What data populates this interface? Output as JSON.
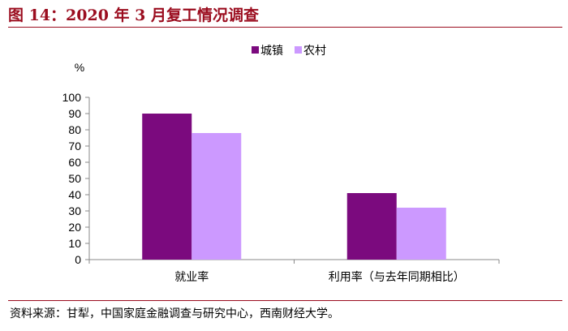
{
  "figure": {
    "title": "图 14：2020 年 3 月复工情况调查",
    "source": "资料来源：甘犁，中国家庭金融调查与研究中心，西南财经大学。"
  },
  "colors": {
    "title": "#9b0d1f",
    "series_城镇": "#7b0a7e",
    "series_农村": "#cc99ff"
  },
  "chart_data": {
    "type": "bar",
    "title": "",
    "xlabel": "",
    "ylabel": "%",
    "ylim": [
      0,
      100
    ],
    "yticks": [
      0,
      10,
      20,
      30,
      40,
      50,
      60,
      70,
      80,
      90,
      100
    ],
    "grid": false,
    "legend_position": "top-right",
    "categories": [
      "就业率",
      "利用率（与去年同期相比）"
    ],
    "series": [
      {
        "name": "城镇",
        "color": "#7b0a7e",
        "values": [
          90,
          41
        ]
      },
      {
        "name": "农村",
        "color": "#cc99ff",
        "values": [
          78,
          32
        ]
      }
    ]
  }
}
